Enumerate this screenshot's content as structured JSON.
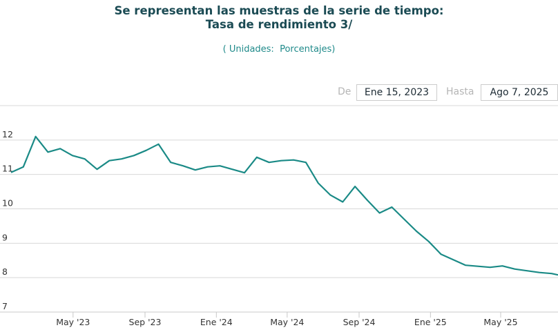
{
  "chart_data": {
    "type": "line",
    "title_lines": [
      "Se representan las muestras de la serie de tiempo:",
      "Tasa de rendimiento 3/"
    ],
    "subtitle": "( Unidades:  Porcentajes)",
    "xlabel": "",
    "ylabel": "",
    "ylim": [
      7,
      13
    ],
    "y_ticks": [
      7,
      8,
      9,
      10,
      11,
      12
    ],
    "x_ticks": [
      "May '23",
      "Sep '23",
      "Ene '24",
      "May '24",
      "Sep '24",
      "Ene '25",
      "May '25"
    ],
    "x_tick_dates": [
      "2023-05-01",
      "2023-09-01",
      "2024-01-01",
      "2024-05-01",
      "2024-09-01",
      "2025-01-01",
      "2025-05-01"
    ],
    "x_range": [
      "2023-01-15",
      "2025-08-07"
    ],
    "grid": "horizontal",
    "legend": "none",
    "color": "#1a8a86",
    "series": [
      {
        "x": [
          "2023-01-15",
          "2023-02-05",
          "2023-02-26",
          "2023-03-19",
          "2023-04-09",
          "2023-04-30",
          "2023-05-21",
          "2023-06-11",
          "2023-07-02",
          "2023-07-23",
          "2023-08-13",
          "2023-09-03",
          "2023-09-24",
          "2023-10-15",
          "2023-11-05",
          "2023-11-26",
          "2023-12-17",
          "2024-01-07",
          "2024-01-28",
          "2024-02-18",
          "2024-03-10",
          "2024-03-31",
          "2024-04-21",
          "2024-05-12",
          "2024-06-02",
          "2024-06-23",
          "2024-07-14",
          "2024-08-04",
          "2024-08-25",
          "2024-09-15",
          "2024-10-06",
          "2024-10-27",
          "2024-11-17",
          "2024-12-08",
          "2024-12-29",
          "2025-01-19",
          "2025-02-09",
          "2025-03-02",
          "2025-03-23",
          "2025-04-13",
          "2025-05-04",
          "2025-05-25",
          "2025-06-15",
          "2025-07-06",
          "2025-07-27",
          "2025-08-07"
        ],
        "y": [
          11.06,
          11.22,
          12.1,
          11.65,
          11.75,
          11.55,
          11.45,
          11.15,
          11.4,
          11.45,
          11.55,
          11.7,
          11.88,
          11.35,
          11.25,
          11.13,
          11.22,
          11.25,
          11.15,
          11.05,
          11.5,
          11.35,
          11.4,
          11.42,
          11.35,
          10.75,
          10.4,
          10.2,
          10.65,
          10.25,
          9.88,
          10.05,
          9.7,
          9.35,
          9.05,
          8.68,
          8.52,
          8.36,
          8.33,
          8.3,
          8.34,
          8.25,
          8.2,
          8.15,
          8.12,
          8.08
        ]
      }
    ]
  },
  "range": {
    "from_label": "De",
    "from_value": "Ene 15, 2023",
    "to_label": "Hasta",
    "to_value": "Ago 7, 2025"
  }
}
